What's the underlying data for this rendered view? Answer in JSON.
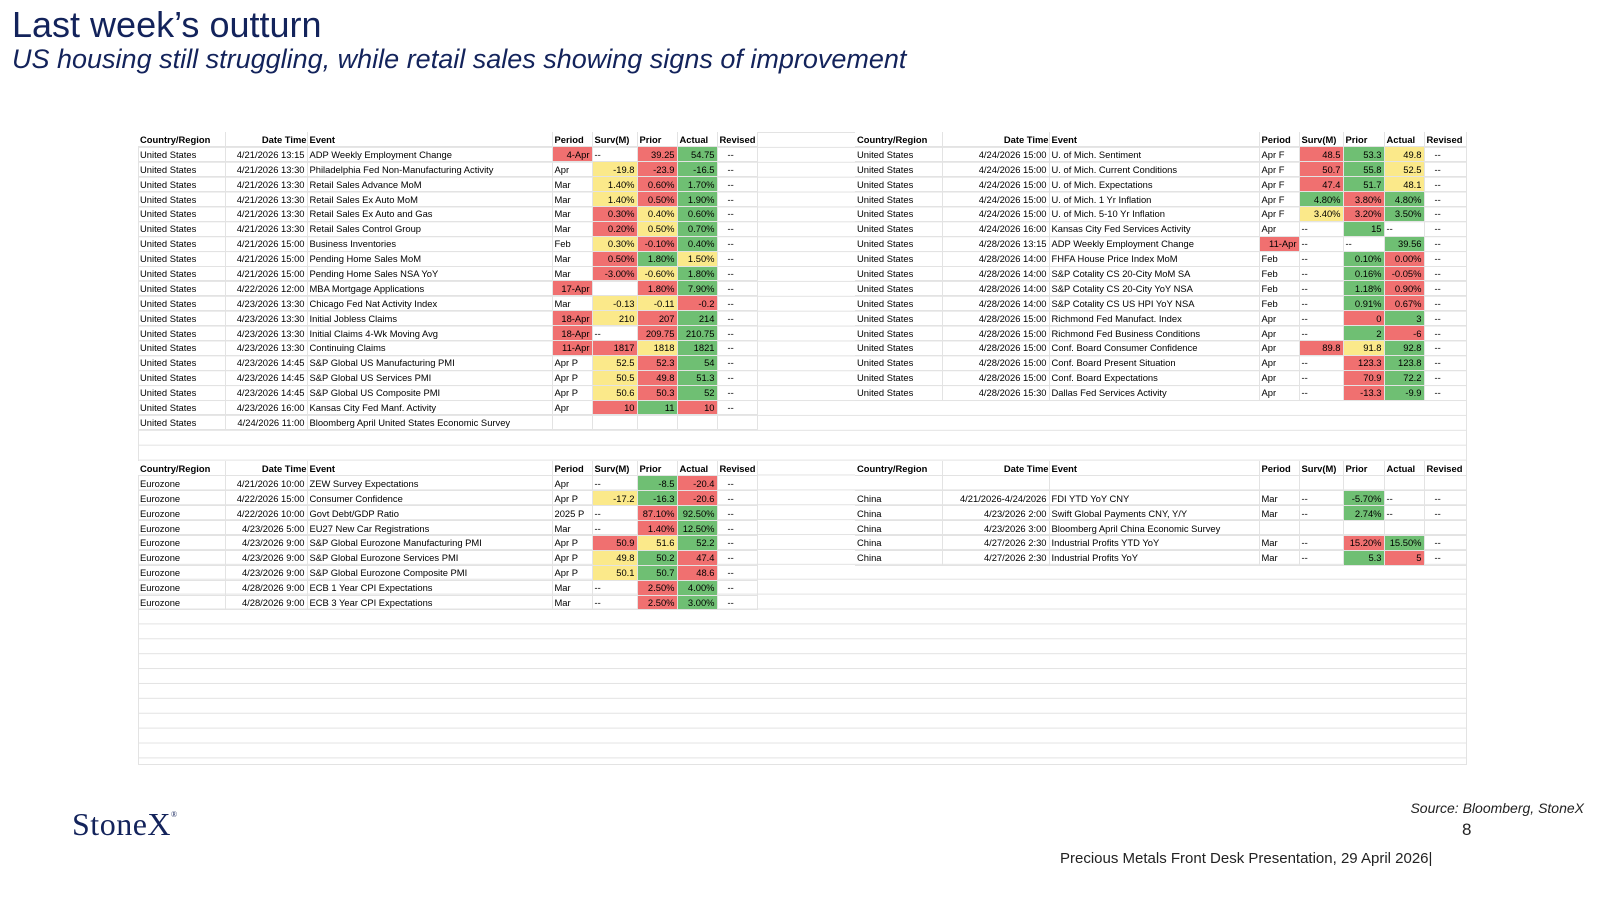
{
  "header": {
    "title": "Last week’s outturn",
    "subtitle": "US housing still struggling, while retail sales showing signs of improvement"
  },
  "columns": [
    "Country/Region",
    "Date Time",
    "Event",
    "Period",
    "Surv(M)",
    "Prior",
    "Actual",
    "Revised"
  ],
  "colors": {
    "green": "#6fbf73",
    "red": "#f07070",
    "yellow": "#fbe98a"
  },
  "tables": {
    "us_left": [
      [
        "United States",
        "4/21/2026 13:15",
        "ADP Weekly Employment Change",
        "4-Apr",
        "--",
        "39.25",
        "54.75",
        "--"
      ],
      [
        "United States",
        "4/21/2026 13:30",
        "Philadelphia Fed Non-Manufacturing Activity",
        "Apr",
        "-19.8",
        "-23.9",
        "-16.5",
        "--"
      ],
      [
        "United States",
        "4/21/2026 13:30",
        "Retail Sales Advance MoM",
        "Mar",
        "1.40%",
        "0.60%",
        "1.70%",
        "--"
      ],
      [
        "United States",
        "4/21/2026 13:30",
        "Retail Sales Ex Auto MoM",
        "Mar",
        "1.40%",
        "0.50%",
        "1.90%",
        "--"
      ],
      [
        "United States",
        "4/21/2026 13:30",
        "Retail Sales Ex Auto and Gas",
        "Mar",
        "0.30%",
        "0.40%",
        "0.60%",
        "--"
      ],
      [
        "United States",
        "4/21/2026 13:30",
        "Retail Sales Control Group",
        "Mar",
        "0.20%",
        "0.50%",
        "0.70%",
        "--"
      ],
      [
        "United States",
        "4/21/2026 15:00",
        "Business Inventories",
        "Feb",
        "0.30%",
        "-0.10%",
        "0.40%",
        "--"
      ],
      [
        "United States",
        "4/21/2026 15:00",
        "Pending Home Sales MoM",
        "Mar",
        "0.50%",
        "1.80%",
        "1.50%",
        "--"
      ],
      [
        "United States",
        "4/21/2026 15:00",
        "Pending Home Sales NSA YoY",
        "Mar",
        "-3.00%",
        "-0.60%",
        "1.80%",
        "--"
      ],
      [
        "United States",
        "4/22/2026 12:00",
        "MBA Mortgage Applications",
        "17-Apr",
        "",
        "1.80%",
        "7.90%",
        "--"
      ],
      [
        "United States",
        "4/23/2026 13:30",
        "Chicago Fed Nat Activity Index",
        "Mar",
        "-0.13",
        "-0.11",
        "-0.2",
        "--"
      ],
      [
        "United States",
        "4/23/2026 13:30",
        "Initial Jobless Claims",
        "18-Apr",
        "210",
        "207",
        "214",
        "--"
      ],
      [
        "United States",
        "4/23/2026 13:30",
        "Initial Claims 4-Wk Moving Avg",
        "18-Apr",
        "--",
        "209.75",
        "210.75",
        "--"
      ],
      [
        "United States",
        "4/23/2026 13:30",
        "Continuing Claims",
        "11-Apr",
        "1817",
        "1818",
        "1821",
        "--"
      ],
      [
        "United States",
        "4/23/2026 14:45",
        "S&P Global US Manufacturing PMI",
        "Apr P",
        "52.5",
        "52.3",
        "54",
        "--"
      ],
      [
        "United States",
        "4/23/2026 14:45",
        "S&P Global US Services PMI",
        "Apr P",
        "50.5",
        "49.8",
        "51.3",
        "--"
      ],
      [
        "United States",
        "4/23/2026 14:45",
        "S&P Global US Composite PMI",
        "Apr P",
        "50.6",
        "50.3",
        "52",
        "--"
      ],
      [
        "United States",
        "4/23/2026 16:00",
        "Kansas City Fed Manf. Activity",
        "Apr",
        "10",
        "11",
        "10",
        "--"
      ],
      [
        "United States",
        "4/24/2026 11:00",
        "Bloomberg April United States Economic Survey",
        "",
        "",
        "",
        "",
        ""
      ]
    ],
    "us_right": [
      [
        "United States",
        "4/24/2026 15:00",
        "U. of Mich. Sentiment",
        "Apr F",
        "48.5",
        "53.3",
        "49.8",
        "--"
      ],
      [
        "United States",
        "4/24/2026 15:00",
        "U. of Mich. Current Conditions",
        "Apr F",
        "50.7",
        "55.8",
        "52.5",
        "--"
      ],
      [
        "United States",
        "4/24/2026 15:00",
        "U. of Mich. Expectations",
        "Apr F",
        "47.4",
        "51.7",
        "48.1",
        "--"
      ],
      [
        "United States",
        "4/24/2026 15:00",
        "U. of Mich. 1 Yr Inflation",
        "Apr F",
        "4.80%",
        "3.80%",
        "4.80%",
        "--"
      ],
      [
        "United States",
        "4/24/2026 15:00",
        "U. of Mich. 5-10 Yr Inflation",
        "Apr F",
        "3.40%",
        "3.20%",
        "3.50%",
        "--"
      ],
      [
        "United States",
        "4/24/2026 16:00",
        "Kansas City Fed Services Activity",
        "Apr",
        "--",
        "15",
        "--",
        "--"
      ],
      [
        "United States",
        "4/28/2026 13:15",
        "ADP Weekly Employment Change",
        "11-Apr",
        "--",
        "--",
        "39.56",
        "--"
      ],
      [
        "United States",
        "4/28/2026 14:00",
        "FHFA House Price Index MoM",
        "Feb",
        "--",
        "0.10%",
        "0.00%",
        "--"
      ],
      [
        "United States",
        "4/28/2026 14:00",
        "S&P Cotality CS 20-City MoM SA",
        "Feb",
        "--",
        "0.16%",
        "-0.05%",
        "--"
      ],
      [
        "United States",
        "4/28/2026 14:00",
        "S&P Cotality CS 20-City YoY NSA",
        "Feb",
        "--",
        "1.18%",
        "0.90%",
        "--"
      ],
      [
        "United States",
        "4/28/2026 14:00",
        "S&P Cotality CS US HPI YoY NSA",
        "Feb",
        "--",
        "0.91%",
        "0.67%",
        "--"
      ],
      [
        "United States",
        "4/28/2026 15:00",
        "Richmond Fed Manufact. Index",
        "Apr",
        "--",
        "0",
        "3",
        "--"
      ],
      [
        "United States",
        "4/28/2026 15:00",
        "Richmond Fed Business Conditions",
        "Apr",
        "--",
        "2",
        "-6",
        "--"
      ],
      [
        "United States",
        "4/28/2026 15:00",
        "Conf. Board Consumer Confidence",
        "Apr",
        "89.8",
        "91.8",
        "92.8",
        "--"
      ],
      [
        "United States",
        "4/28/2026 15:00",
        "Conf. Board Present Situation",
        "Apr",
        "--",
        "123.3",
        "123.8",
        "--"
      ],
      [
        "United States",
        "4/28/2026 15:00",
        "Conf. Board Expectations",
        "Apr",
        "--",
        "70.9",
        "72.2",
        "--"
      ],
      [
        "United States",
        "4/28/2026 15:30",
        "Dallas Fed Services Activity",
        "Apr",
        "--",
        "-13.3",
        "-9.9",
        "--"
      ]
    ],
    "eu": [
      [
        "Eurozone",
        "4/21/2026 10:00",
        "ZEW Survey Expectations",
        "Apr",
        "--",
        "-8.5",
        "-20.4",
        "--"
      ],
      [
        "Eurozone",
        "4/22/2026 15:00",
        "Consumer Confidence",
        "Apr P",
        "-17.2",
        "-16.3",
        "-20.6",
        "--"
      ],
      [
        "Eurozone",
        "4/22/2026 10:00",
        "Govt Debt/GDP Ratio",
        "2025 P",
        "--",
        "87.10%",
        "92.50%",
        "--"
      ],
      [
        "Eurozone",
        "4/23/2026 5:00",
        "EU27 New Car Registrations",
        "Mar",
        "--",
        "1.40%",
        "12.50%",
        "--"
      ],
      [
        "Eurozone",
        "4/23/2026 9:00",
        "S&P Global Eurozone Manufacturing PMI",
        "Apr P",
        "50.9",
        "51.6",
        "52.2",
        "--"
      ],
      [
        "Eurozone",
        "4/23/2026 9:00",
        "S&P Global Eurozone Services PMI",
        "Apr P",
        "49.8",
        "50.2",
        "47.4",
        "--"
      ],
      [
        "Eurozone",
        "4/23/2026 9:00",
        "S&P Global Eurozone Composite PMI",
        "Apr P",
        "50.1",
        "50.7",
        "48.6",
        "--"
      ],
      [
        "Eurozone",
        "4/28/2026 9:00",
        "ECB 1 Year CPI Expectations",
        "Mar",
        "--",
        "2.50%",
        "4.00%",
        "--"
      ],
      [
        "Eurozone",
        "4/28/2026 9:00",
        "ECB 3 Year CPI Expectations",
        "Mar",
        "--",
        "2.50%",
        "3.00%",
        "--"
      ]
    ],
    "china": [
      [
        "",
        "",
        "",
        "",
        "",
        "",
        "",
        ""
      ],
      [
        "China",
        "4/21/2026-4/24/2026",
        "FDI YTD YoY CNY",
        "Mar",
        "--",
        "-5.70%",
        "--",
        "--"
      ],
      [
        "China",
        "4/23/2026 2:00",
        "Swift Global Payments CNY, Y/Y",
        "Mar",
        "--",
        "2.74%",
        "--",
        "--"
      ],
      [
        "China",
        "4/23/2026 3:00",
        "Bloomberg April China Economic Survey",
        "",
        "",
        "",
        "",
        ""
      ],
      [
        "China",
        "4/27/2026 2:30",
        "Industrial Profits YTD YoY",
        "Mar",
        "--",
        "15.20%",
        "15.50%",
        "--"
      ],
      [
        "China",
        "4/27/2026 2:30",
        "Industrial Profits YoY",
        "Mar",
        "--",
        "5.3",
        "5",
        "--"
      ]
    ]
  },
  "cell_colors": {
    "us_left": [
      [
        "",
        "r",
        "g"
      ],
      [
        "y",
        "r",
        "g"
      ],
      [
        "y",
        "r",
        "g"
      ],
      [
        "y",
        "r",
        "g"
      ],
      [
        "r",
        "y",
        "g"
      ],
      [
        "r",
        "y",
        "g"
      ],
      [
        "y",
        "r",
        "g"
      ],
      [
        "r",
        "g",
        "y"
      ],
      [
        "r",
        "y",
        "g"
      ],
      [
        "",
        "r",
        "g"
      ],
      [
        "y",
        "y",
        "r"
      ],
      [
        "y",
        "r",
        "g"
      ],
      [
        "",
        "r",
        "g"
      ],
      [
        "r",
        "y",
        "g"
      ],
      [
        "y",
        "r",
        "g"
      ],
      [
        "y",
        "r",
        "g"
      ],
      [
        "y",
        "r",
        "g"
      ],
      [
        "r",
        "g",
        "r"
      ],
      [
        "",
        "",
        ""
      ]
    ],
    "us_right": [
      [
        "r",
        "g",
        "y"
      ],
      [
        "r",
        "g",
        "y"
      ],
      [
        "r",
        "g",
        "y"
      ],
      [
        "g",
        "r",
        "g"
      ],
      [
        "y",
        "r",
        "g"
      ],
      [
        "",
        "g",
        ""
      ],
      [
        "",
        "",
        "g"
      ],
      [
        "",
        "g",
        "r"
      ],
      [
        "",
        "g",
        "r"
      ],
      [
        "",
        "g",
        "r"
      ],
      [
        "",
        "g",
        "r"
      ],
      [
        "",
        "r",
        "g"
      ],
      [
        "",
        "g",
        "r"
      ],
      [
        "r",
        "y",
        "g"
      ],
      [
        "",
        "r",
        "g"
      ],
      [
        "",
        "r",
        "g"
      ],
      [
        "",
        "r",
        "g"
      ]
    ],
    "eu": [
      [
        "",
        "g",
        "r"
      ],
      [
        "y",
        "g",
        "r"
      ],
      [
        "",
        "r",
        "g"
      ],
      [
        "",
        "r",
        "g"
      ],
      [
        "r",
        "y",
        "g"
      ],
      [
        "y",
        "g",
        "r"
      ],
      [
        "y",
        "g",
        "r"
      ],
      [
        "",
        "r",
        "g"
      ],
      [
        "",
        "r",
        "g"
      ]
    ],
    "china": [
      [
        "",
        "",
        ""
      ],
      [
        "",
        "g",
        ""
      ],
      [
        "",
        "g",
        ""
      ],
      [
        "",
        "",
        ""
      ],
      [
        "",
        "r",
        "g"
      ],
      [
        "",
        "g",
        "r"
      ]
    ]
  },
  "footer": {
    "logo": "StoneX",
    "logo_mark": "®",
    "source": "Source: Bloomberg, StoneX",
    "page_number": "8",
    "presentation": "Precious Metals Front Desk Presentation, 29 April 2026|"
  }
}
